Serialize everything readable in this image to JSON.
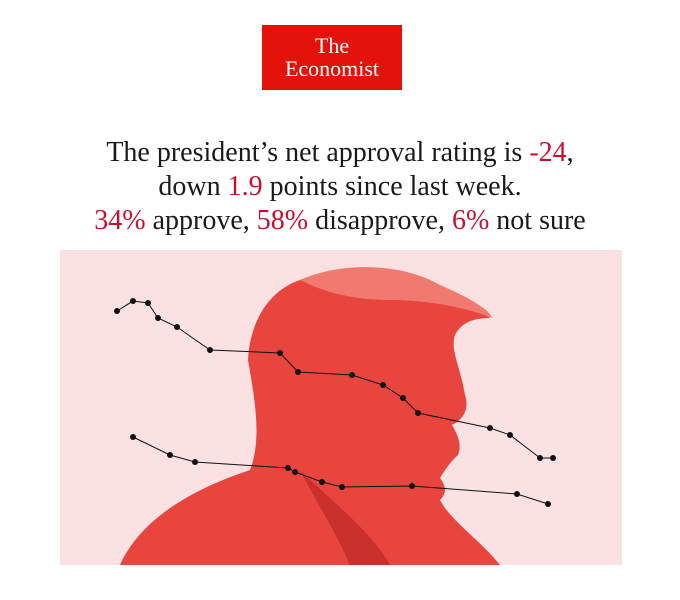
{
  "logo": {
    "line1": "The",
    "line2": "Economist"
  },
  "headline": [
    [
      {
        "text": "The president’s net approval rating is "
      },
      {
        "text": "-24",
        "color": "#c8102e"
      },
      {
        "text": ","
      }
    ],
    [
      {
        "text": "down "
      },
      {
        "text": "1.9",
        "color": "#c8102e"
      },
      {
        "text": " points since last week."
      }
    ],
    [
      {
        "text": "34%",
        "color": "#c8102e"
      },
      {
        "text": " approve, "
      },
      {
        "text": "58%",
        "color": "#c8102e"
      },
      {
        "text": " disapprove, "
      },
      {
        "text": "6%",
        "color": "#c8102e"
      },
      {
        "text": " not sure"
      }
    ]
  ]
}
